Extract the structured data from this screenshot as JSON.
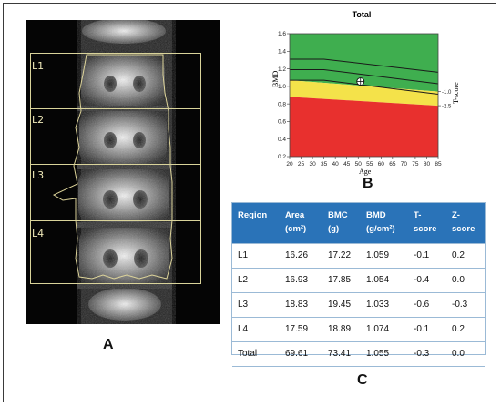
{
  "panel_labels": {
    "a": "A",
    "b": "B",
    "c": "C"
  },
  "scan": {
    "regions": [
      "L1",
      "L2",
      "L3",
      "L4"
    ]
  },
  "chart_data": {
    "type": "area",
    "title": "Total",
    "xlabel": "Age",
    "ylabel": "BMD",
    "right_axis_label": "T-score",
    "xlim": [
      20,
      85
    ],
    "ylim": [
      0.2,
      1.6
    ],
    "x_ticks": [
      "20",
      "25",
      "30",
      "35",
      "40",
      "45",
      "50",
      "55",
      "60",
      "65",
      "70",
      "75",
      "80",
      "85"
    ],
    "y_ticks": [
      "0.2",
      "0.4",
      "0.6",
      "0.8",
      "1.0",
      "1.2",
      "1.4",
      "1.6"
    ],
    "t_score_ticks": [
      "-1.0",
      "-2.5"
    ],
    "zones": [
      {
        "name": "normal",
        "color": "#3fae4f"
      },
      {
        "name": "osteopenia",
        "color": "#f4e24a"
      },
      {
        "name": "osteoporosis",
        "color": "#e8302e"
      }
    ],
    "reference_lines": [
      {
        "name": "upper",
        "x": [
          20,
          35,
          85
        ],
        "y": [
          1.31,
          1.31,
          1.16
        ]
      },
      {
        "name": "mean",
        "x": [
          20,
          35,
          85
        ],
        "y": [
          1.19,
          1.19,
          1.03
        ]
      },
      {
        "name": "lower",
        "x": [
          20,
          35,
          85
        ],
        "y": [
          1.07,
          1.07,
          0.91
        ]
      }
    ],
    "boundaries": {
      "minus1": [
        20,
        1.07,
        85,
        0.94
      ],
      "minus25": [
        20,
        0.88,
        85,
        0.78
      ]
    },
    "patient_point": {
      "x": 51,
      "y": 1.055
    }
  },
  "table": {
    "headers": [
      [
        "Region"
      ],
      [
        "Area",
        "(cm²)"
      ],
      [
        "BMC",
        "(g)"
      ],
      [
        "BMD",
        "(g/cm²)"
      ],
      [
        "T-",
        "score"
      ],
      [
        "Z-",
        "score"
      ]
    ],
    "rows": [
      [
        "L1",
        "16.26",
        "17.22",
        "1.059",
        "-0.1",
        "0.2"
      ],
      [
        "L2",
        "16.93",
        "17.85",
        "1.054",
        "-0.4",
        "0.0"
      ],
      [
        "L3",
        "18.83",
        "19.45",
        "1.033",
        "-0.6",
        "-0.3"
      ],
      [
        "L4",
        "17.59",
        "18.89",
        "1.074",
        "-0.1",
        "0.2"
      ],
      [
        "Total",
        "69.61",
        "73.41",
        "1.055",
        "-0.3",
        "0.0"
      ]
    ]
  }
}
